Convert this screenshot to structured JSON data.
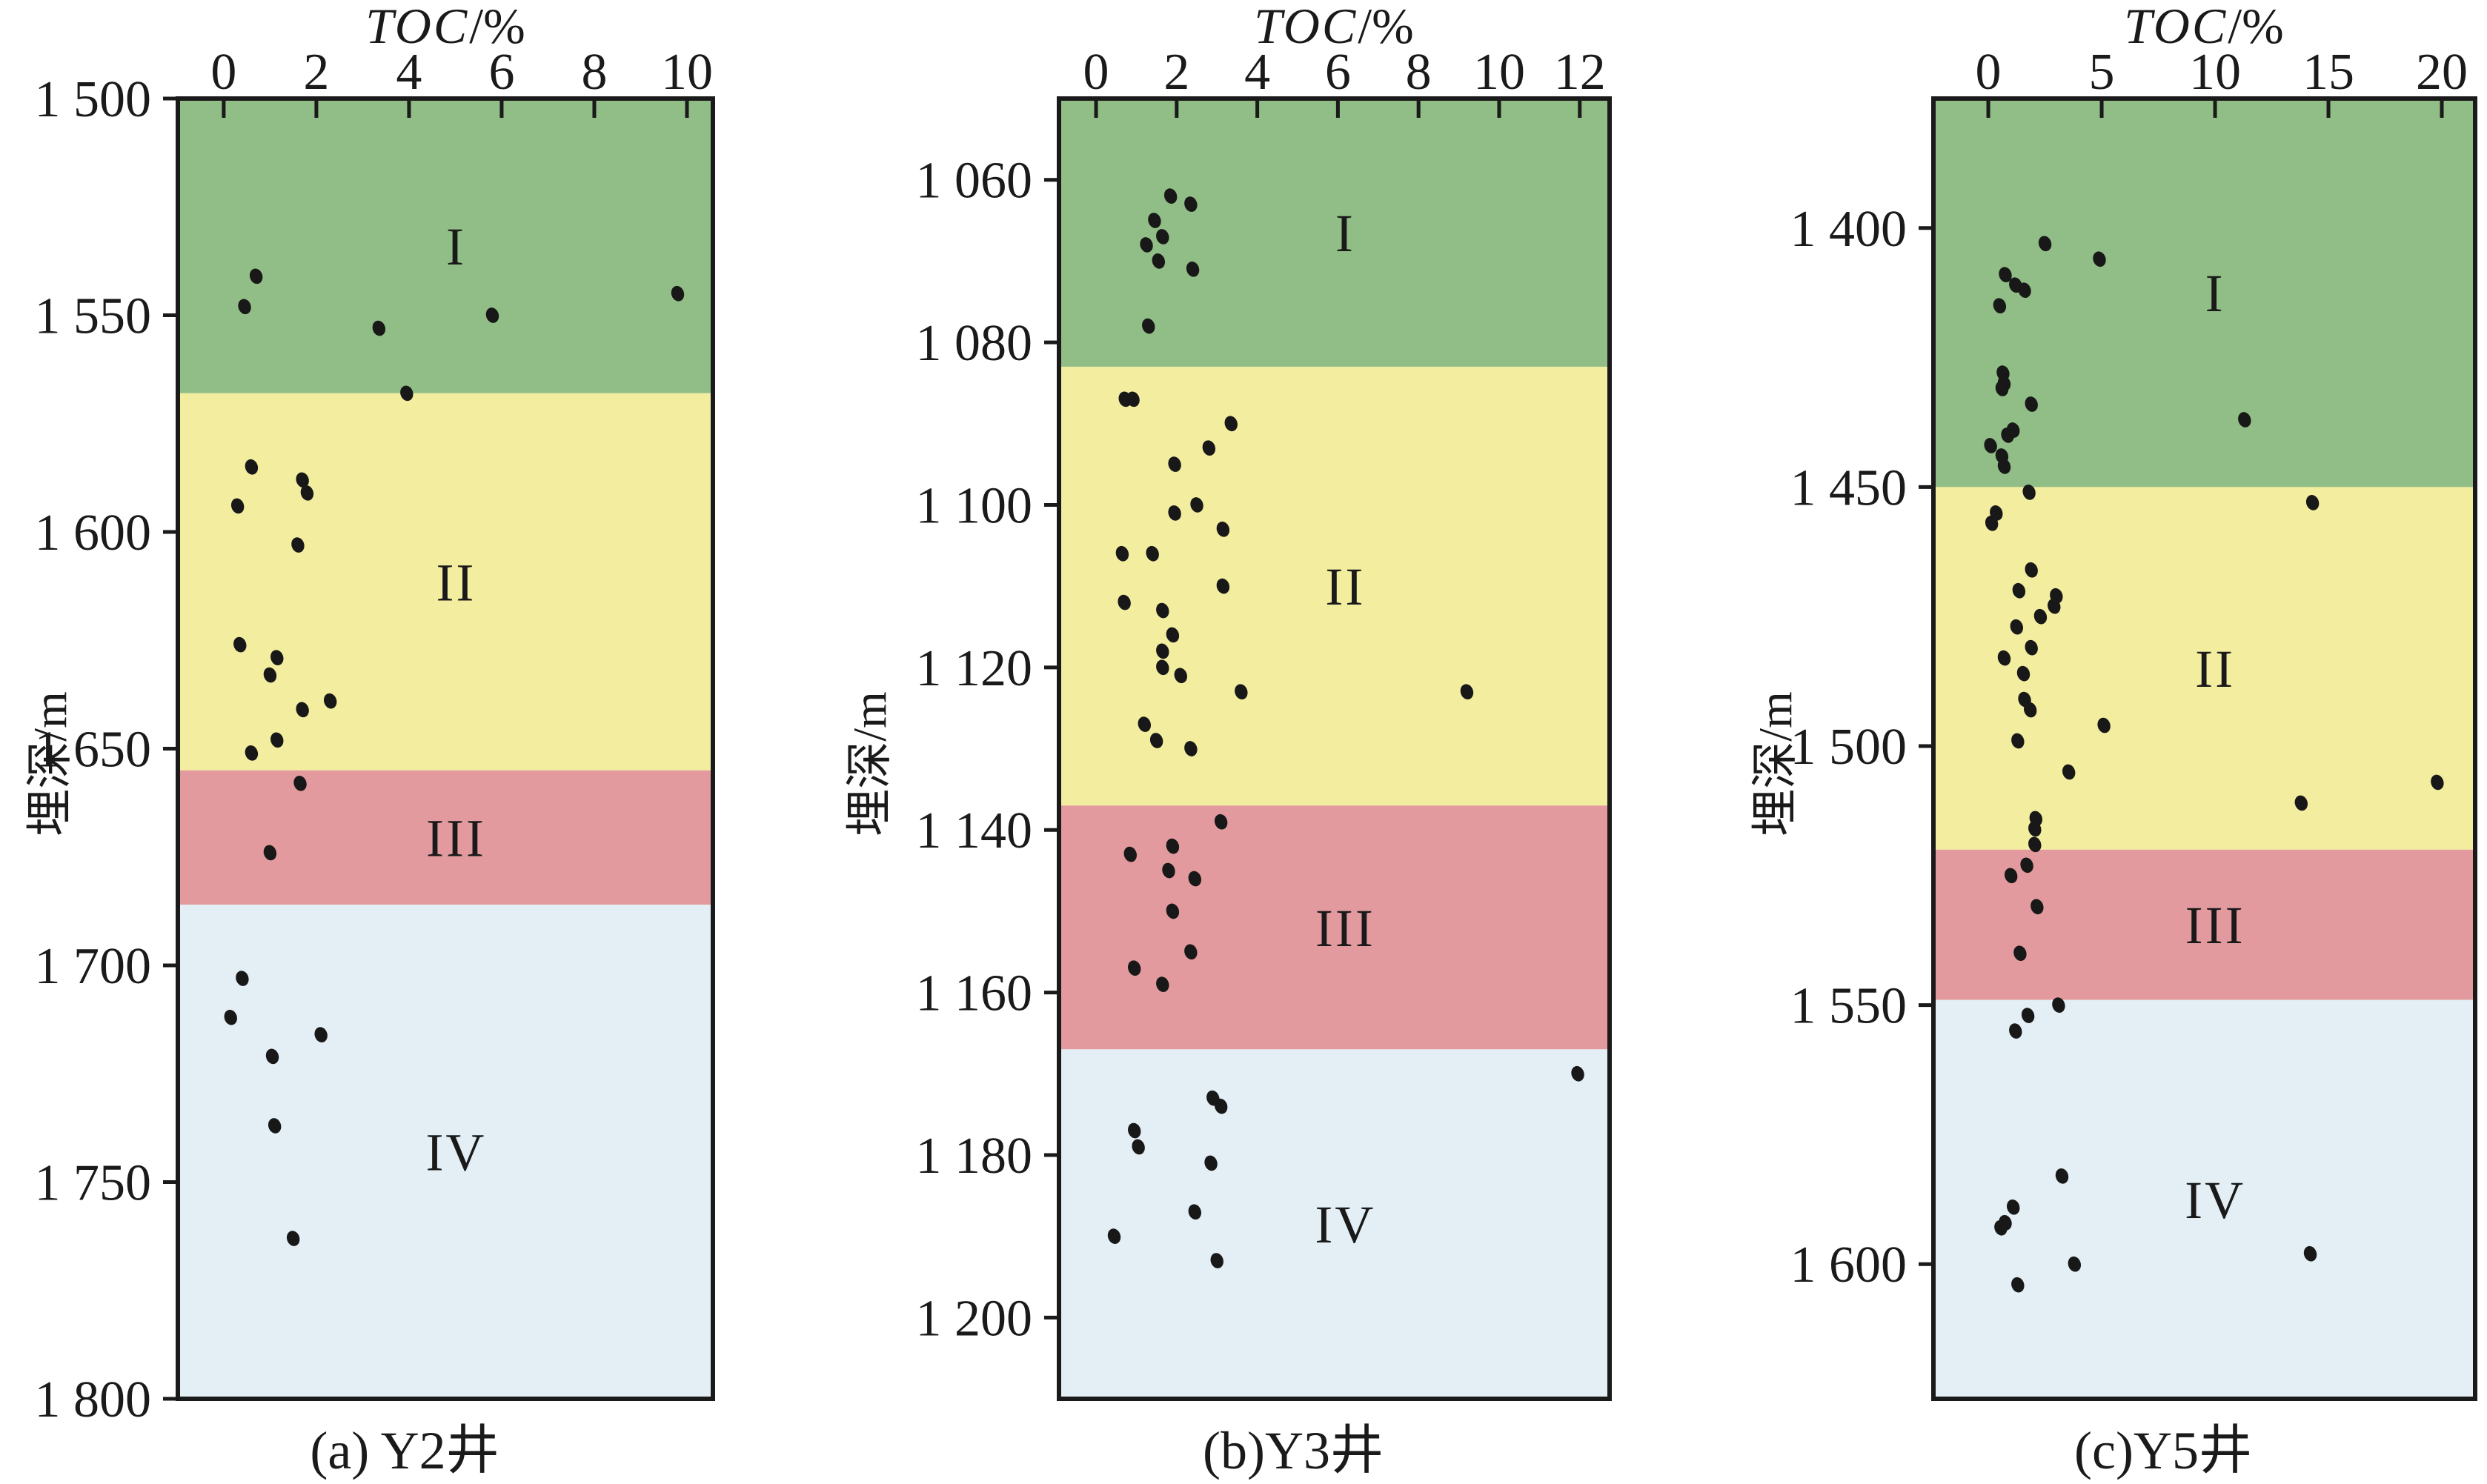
{
  "figure": {
    "background": "#ffffff",
    "ink": "#1a1a1a",
    "point_color": "#181818",
    "zone_colors": {
      "I": "#91bd86",
      "II": "#f2ed9f",
      "III": "#e29a9e",
      "IV": "#e3eff4"
    },
    "zone_label_font_size": 72
  },
  "chart_data": [
    {
      "type": "scatter",
      "well": "Y2",
      "caption": "(a) Y2井",
      "xlabel": {
        "italic": "TOC",
        "unit": "/%"
      },
      "ylabel": "埋深/m",
      "x_ticks": [
        0,
        2,
        4,
        6,
        8,
        10
      ],
      "x_window": [
        -0.99,
        10.56
      ],
      "depth_window": [
        1500,
        1800
      ],
      "y_ticks": [
        {
          "value": 1500,
          "label": "1 500"
        },
        {
          "value": 1550,
          "label": "1 550"
        },
        {
          "value": 1600,
          "label": "1 600"
        },
        {
          "value": 1650,
          "label": "1 650"
        },
        {
          "value": 1700,
          "label": "1 700"
        },
        {
          "value": 1750,
          "label": "1 750"
        },
        {
          "value": 1800,
          "label": "1 800"
        }
      ],
      "zones": [
        {
          "name": "I",
          "from": 1500,
          "to": 1568
        },
        {
          "name": "II",
          "from": 1568,
          "to": 1655
        },
        {
          "name": "III",
          "from": 1655,
          "to": 1686
        },
        {
          "name": "IV",
          "from": 1686,
          "to": 1800
        }
      ],
      "points": [
        [
          0.7,
          1541
        ],
        [
          0.45,
          1548
        ],
        [
          3.35,
          1553
        ],
        [
          5.8,
          1550
        ],
        [
          9.8,
          1545
        ],
        [
          3.95,
          1568
        ],
        [
          0.6,
          1585
        ],
        [
          1.7,
          1588
        ],
        [
          1.8,
          1591
        ],
        [
          0.3,
          1594
        ],
        [
          1.6,
          1603
        ],
        [
          0.35,
          1626
        ],
        [
          1.15,
          1629
        ],
        [
          1.0,
          1633
        ],
        [
          2.3,
          1639
        ],
        [
          1.7,
          1641
        ],
        [
          1.15,
          1648
        ],
        [
          0.6,
          1651
        ],
        [
          1.65,
          1658
        ],
        [
          1.0,
          1674
        ],
        [
          0.4,
          1703
        ],
        [
          0.15,
          1712
        ],
        [
          2.1,
          1716
        ],
        [
          1.05,
          1721
        ],
        [
          1.1,
          1737
        ],
        [
          1.5,
          1763
        ]
      ]
    },
    {
      "type": "scatter",
      "well": "Y3",
      "caption": "(b)Y3井",
      "xlabel": {
        "italic": "TOC",
        "unit": "/%"
      },
      "ylabel": "埋深/m",
      "x_ticks": [
        0,
        2,
        4,
        6,
        8,
        10,
        12
      ],
      "x_window": [
        -0.92,
        12.74
      ],
      "depth_window": [
        1050,
        1210
      ],
      "y_ticks": [
        {
          "value": 1060,
          "label": "1 060"
        },
        {
          "value": 1080,
          "label": "1 080"
        },
        {
          "value": 1100,
          "label": "1 100"
        },
        {
          "value": 1120,
          "label": "1 120"
        },
        {
          "value": 1140,
          "label": "1 140"
        },
        {
          "value": 1160,
          "label": "1 160"
        },
        {
          "value": 1180,
          "label": "1 180"
        },
        {
          "value": 1200,
          "label": "1 200"
        }
      ],
      "zones": [
        {
          "name": "I",
          "from": 1050,
          "to": 1083
        },
        {
          "name": "II",
          "from": 1083,
          "to": 1137
        },
        {
          "name": "III",
          "from": 1137,
          "to": 1167
        },
        {
          "name": "IV",
          "from": 1167,
          "to": 1210
        }
      ],
      "points": [
        [
          1.85,
          1062
        ],
        [
          2.35,
          1063
        ],
        [
          1.45,
          1065
        ],
        [
          1.65,
          1067
        ],
        [
          1.25,
          1068
        ],
        [
          1.55,
          1070
        ],
        [
          2.4,
          1071
        ],
        [
          1.3,
          1078
        ],
        [
          0.72,
          1087
        ],
        [
          0.92,
          1087
        ],
        [
          3.35,
          1090
        ],
        [
          2.8,
          1093
        ],
        [
          1.95,
          1095
        ],
        [
          2.5,
          1100
        ],
        [
          1.95,
          1101
        ],
        [
          3.15,
          1103
        ],
        [
          1.4,
          1106
        ],
        [
          0.65,
          1106
        ],
        [
          3.15,
          1110
        ],
        [
          0.7,
          1112
        ],
        [
          1.65,
          1113
        ],
        [
          1.9,
          1116
        ],
        [
          1.65,
          1118
        ],
        [
          1.65,
          1120
        ],
        [
          2.1,
          1121
        ],
        [
          3.6,
          1123
        ],
        [
          9.2,
          1123
        ],
        [
          1.2,
          1127
        ],
        [
          1.5,
          1129
        ],
        [
          2.35,
          1130
        ],
        [
          3.1,
          1139
        ],
        [
          1.9,
          1142
        ],
        [
          0.85,
          1143
        ],
        [
          1.8,
          1145
        ],
        [
          2.45,
          1146
        ],
        [
          1.9,
          1150
        ],
        [
          2.35,
          1155
        ],
        [
          0.95,
          1157
        ],
        [
          1.65,
          1159
        ],
        [
          11.95,
          1170
        ],
        [
          2.9,
          1173
        ],
        [
          3.1,
          1174
        ],
        [
          0.95,
          1177
        ],
        [
          1.05,
          1179
        ],
        [
          2.85,
          1181
        ],
        [
          2.45,
          1187
        ],
        [
          0.45,
          1190
        ],
        [
          3.0,
          1193
        ]
      ]
    },
    {
      "type": "scatter",
      "well": "Y5",
      "caption": "(c)Y5井",
      "xlabel": {
        "italic": "TOC",
        "unit": "/%"
      },
      "ylabel": "埋深/m",
      "x_ticks": [
        0,
        5,
        10,
        15,
        20
      ],
      "x_window": [
        -2.42,
        21.47
      ],
      "depth_window": [
        1375,
        1626
      ],
      "y_ticks": [
        {
          "value": 1400,
          "label": "1 400"
        },
        {
          "value": 1450,
          "label": "1 450"
        },
        {
          "value": 1500,
          "label": "1 500"
        },
        {
          "value": 1550,
          "label": "1 550"
        },
        {
          "value": 1600,
          "label": "1 600"
        }
      ],
      "zones": [
        {
          "name": "I",
          "from": 1375,
          "to": 1450
        },
        {
          "name": "II",
          "from": 1450,
          "to": 1520
        },
        {
          "name": "III",
          "from": 1520,
          "to": 1549
        },
        {
          "name": "IV",
          "from": 1549,
          "to": 1626
        }
      ],
      "points": [
        [
          2.5,
          1403
        ],
        [
          4.9,
          1406
        ],
        [
          0.75,
          1409
        ],
        [
          1.2,
          1411
        ],
        [
          1.6,
          1412
        ],
        [
          0.5,
          1415
        ],
        [
          0.65,
          1428
        ],
        [
          0.7,
          1430
        ],
        [
          0.6,
          1431
        ],
        [
          1.9,
          1434
        ],
        [
          11.3,
          1437
        ],
        [
          1.1,
          1439
        ],
        [
          0.85,
          1440
        ],
        [
          0.1,
          1442
        ],
        [
          0.6,
          1444
        ],
        [
          0.7,
          1446
        ],
        [
          1.8,
          1451
        ],
        [
          14.3,
          1453
        ],
        [
          0.35,
          1455
        ],
        [
          0.15,
          1457
        ],
        [
          1.9,
          1466
        ],
        [
          1.35,
          1470
        ],
        [
          3.0,
          1471
        ],
        [
          2.9,
          1473
        ],
        [
          2.3,
          1475
        ],
        [
          1.25,
          1477
        ],
        [
          1.9,
          1481
        ],
        [
          0.7,
          1483
        ],
        [
          1.55,
          1486
        ],
        [
          1.6,
          1491
        ],
        [
          1.85,
          1493
        ],
        [
          5.1,
          1496
        ],
        [
          1.3,
          1499
        ],
        [
          3.55,
          1505
        ],
        [
          19.8,
          1507
        ],
        [
          13.8,
          1511
        ],
        [
          2.1,
          1514
        ],
        [
          2.05,
          1516
        ],
        [
          2.05,
          1519
        ],
        [
          1.7,
          1523
        ],
        [
          1.0,
          1525
        ],
        [
          2.15,
          1531
        ],
        [
          1.4,
          1540
        ],
        [
          3.1,
          1550
        ],
        [
          1.75,
          1552
        ],
        [
          1.2,
          1555
        ],
        [
          3.25,
          1583
        ],
        [
          1.1,
          1589
        ],
        [
          0.75,
          1592
        ],
        [
          0.55,
          1593
        ],
        [
          14.2,
          1598
        ],
        [
          3.8,
          1600
        ],
        [
          1.3,
          1604
        ]
      ]
    }
  ]
}
